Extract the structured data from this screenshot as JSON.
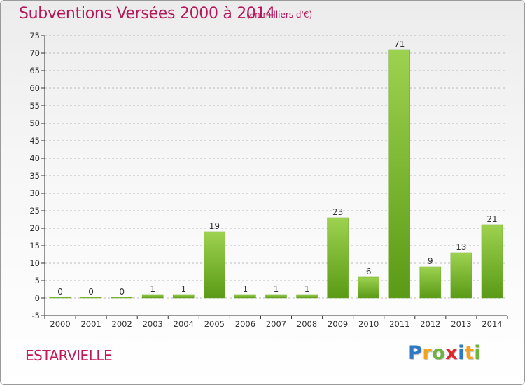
{
  "header": {
    "title": "Subventions Versées 2000 à 2014",
    "unit": "(en milliers d'€)"
  },
  "footer": {
    "commune": "ESTARVIELLE",
    "logo_letters": [
      "P",
      "r",
      "o",
      "x",
      "i",
      "t",
      "i"
    ],
    "logo_colors": [
      "#2f78c4",
      "#f2a21b",
      "#6cb33f",
      "#e2262e",
      "#2f78c4",
      "#f2a21b",
      "#6cb33f"
    ]
  },
  "chart_data": {
    "type": "bar",
    "categories": [
      "2000",
      "2001",
      "2002",
      "2003",
      "2004",
      "2005",
      "2006",
      "2007",
      "2008",
      "2009",
      "2010",
      "2011",
      "2012",
      "2013",
      "2014"
    ],
    "values": [
      0,
      0,
      0,
      1,
      1,
      19,
      1,
      1,
      1,
      23,
      6,
      71,
      9,
      13,
      21
    ],
    "value_labels": [
      "0",
      "0",
      "0",
      "1",
      "1",
      "19",
      "1",
      "1",
      "1",
      "23",
      "6",
      "71",
      "9",
      "13",
      "21"
    ],
    "ylim": [
      -5,
      75
    ],
    "yticks": [
      -5,
      0,
      5,
      10,
      15,
      20,
      25,
      30,
      35,
      40,
      45,
      50,
      55,
      60,
      65,
      70,
      75
    ],
    "grid": true,
    "bar_color_light": "#9dd24f",
    "bar_color_dark": "#5a9a16",
    "colors": {
      "accent": "#b5175a",
      "grid": "#bbbbbb",
      "axis": "#333333"
    }
  }
}
